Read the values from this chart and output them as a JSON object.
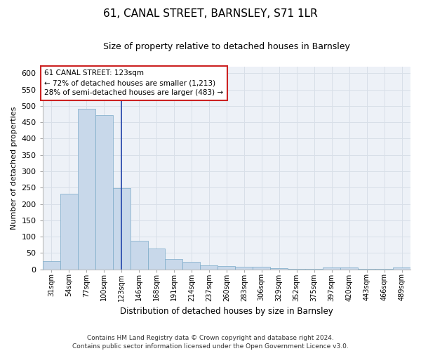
{
  "title": "61, CANAL STREET, BARNSLEY, S71 1LR",
  "subtitle": "Size of property relative to detached houses in Barnsley",
  "xlabel": "Distribution of detached houses by size in Barnsley",
  "ylabel": "Number of detached properties",
  "bar_color": "#c8d8ea",
  "bar_edge_color": "#7aaac8",
  "vline_color": "#2244aa",
  "categories": [
    "31sqm",
    "54sqm",
    "77sqm",
    "100sqm",
    "123sqm",
    "146sqm",
    "168sqm",
    "191sqm",
    "214sqm",
    "237sqm",
    "260sqm",
    "283sqm",
    "306sqm",
    "329sqm",
    "352sqm",
    "375sqm",
    "397sqm",
    "420sqm",
    "443sqm",
    "466sqm",
    "489sqm"
  ],
  "values": [
    26,
    232,
    491,
    472,
    249,
    88,
    63,
    31,
    23,
    13,
    11,
    9,
    7,
    4,
    1,
    1,
    6,
    6,
    1,
    1,
    5
  ],
  "ylim": [
    0,
    620
  ],
  "yticks": [
    0,
    50,
    100,
    150,
    200,
    250,
    300,
    350,
    400,
    450,
    500,
    550,
    600
  ],
  "annotation_text": "61 CANAL STREET: 123sqm\n← 72% of detached houses are smaller (1,213)\n28% of semi-detached houses are larger (483) →",
  "annotation_box_facecolor": "#ffffff",
  "annotation_box_edgecolor": "#cc2222",
  "footer": "Contains HM Land Registry data © Crown copyright and database right 2024.\nContains public sector information licensed under the Open Government Licence v3.0.",
  "grid_color": "#d8dfe8",
  "background_color": "#edf1f7",
  "title_fontsize": 11,
  "subtitle_fontsize": 9,
  "ylabel_fontsize": 8,
  "xlabel_fontsize": 8.5,
  "tick_fontsize": 8,
  "xtick_fontsize": 7,
  "footer_fontsize": 6.5,
  "ann_fontsize": 7.5
}
